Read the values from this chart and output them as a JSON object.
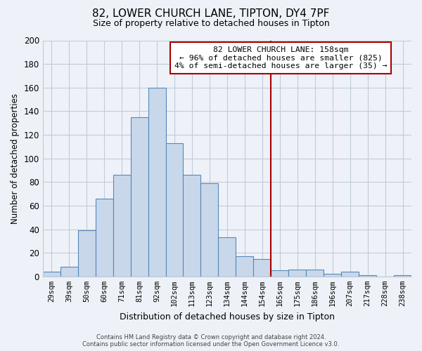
{
  "title": "82, LOWER CHURCH LANE, TIPTON, DY4 7PF",
  "subtitle": "Size of property relative to detached houses in Tipton",
  "xlabel": "Distribution of detached houses by size in Tipton",
  "ylabel": "Number of detached properties",
  "bin_labels": [
    "29sqm",
    "39sqm",
    "50sqm",
    "60sqm",
    "71sqm",
    "81sqm",
    "92sqm",
    "102sqm",
    "113sqm",
    "123sqm",
    "134sqm",
    "144sqm",
    "154sqm",
    "165sqm",
    "175sqm",
    "186sqm",
    "196sqm",
    "207sqm",
    "217sqm",
    "228sqm",
    "238sqm"
  ],
  "bar_heights": [
    4,
    8,
    39,
    66,
    86,
    135,
    160,
    113,
    86,
    79,
    33,
    17,
    15,
    5,
    6,
    6,
    2,
    4,
    1,
    0,
    1
  ],
  "bar_color": "#c8d8ea",
  "bar_edge_color": "#5588bb",
  "ylim": [
    0,
    200
  ],
  "yticks": [
    0,
    20,
    40,
    60,
    80,
    100,
    120,
    140,
    160,
    180,
    200
  ],
  "vline_x_index": 12.5,
  "vline_color": "#aa0000",
  "annotation_box_text": "82 LOWER CHURCH LANE: 158sqm\n← 96% of detached houses are smaller (825)\n4% of semi-detached houses are larger (35) →",
  "footer_line1": "Contains HM Land Registry data © Crown copyright and database right 2024.",
  "footer_line2": "Contains public sector information licensed under the Open Government Licence v3.0.",
  "background_color": "#eef2f8",
  "plot_bg_color": "#eef2f8",
  "grid_color": "#c0ccd8"
}
